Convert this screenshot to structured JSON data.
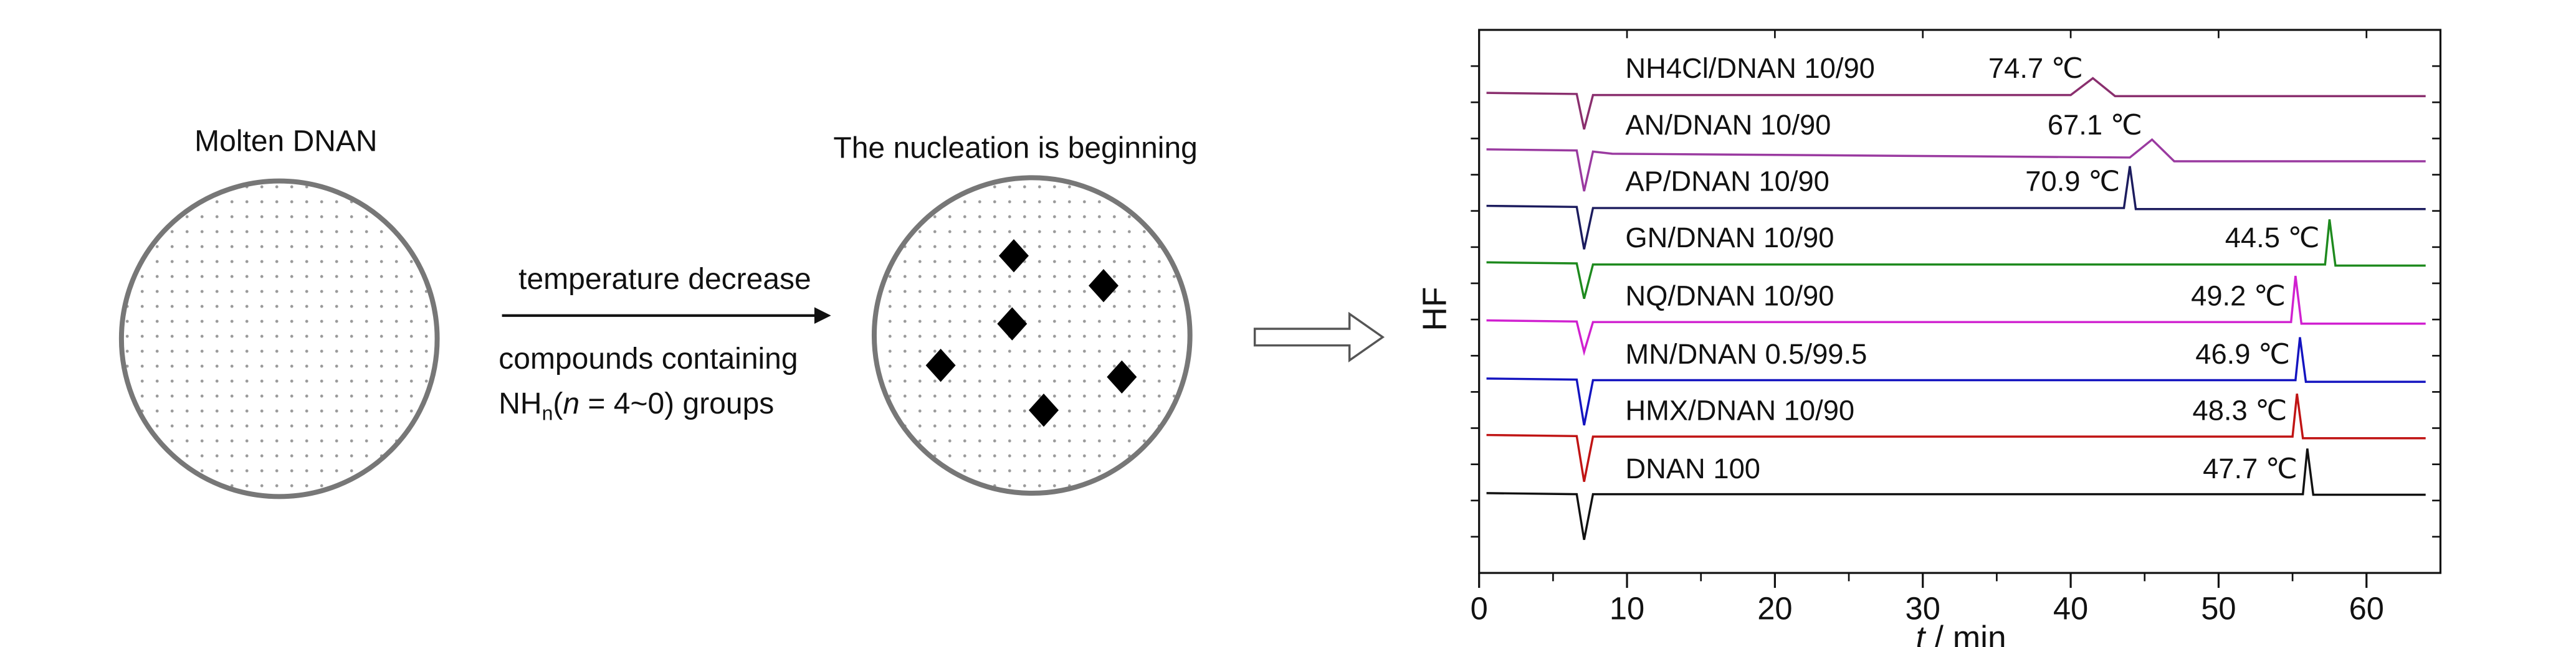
{
  "diagram": {
    "left_title": "Molten DNAN",
    "right_title": "The nucleation is beginning",
    "arrow_top": "temperature decrease",
    "arrow_bottom_1": "compounds containing",
    "arrow_bottom_2": {
      "base": "NH",
      "sub": "n",
      "open": "(",
      "var": "n",
      "rest": " = 4~0) groups"
    }
  },
  "chart_data": {
    "type": "line",
    "xlabel_var": "t",
    "xlabel_unit": " / min",
    "ylabel": "HF",
    "xlim": [
      0,
      65
    ],
    "xticks": [
      0,
      10,
      20,
      30,
      40,
      50,
      60
    ],
    "ylim": [
      0,
      10
    ],
    "series": [
      {
        "name": "NH4Cl/DNAN 10/90",
        "peak_label": "74.7 ℃",
        "color": "#8a2f6e",
        "x": [
          0.5,
          6.6,
          7.1,
          7.7,
          9,
          40,
          41.5,
          43,
          64
        ],
        "values": [
          8.84,
          8.82,
          8.17,
          8.8,
          8.8,
          8.8,
          9.11,
          8.78,
          8.78
        ]
      },
      {
        "name": "AN/DNAN 10/90",
        "peak_label": "67.1 ℃",
        "color": "#9a3aa0",
        "x": [
          0.5,
          6.6,
          7.1,
          7.7,
          9,
          44,
          45.5,
          47,
          64
        ],
        "values": [
          7.8,
          7.78,
          7.03,
          7.76,
          7.72,
          7.65,
          7.98,
          7.58,
          7.58
        ]
      },
      {
        "name": "AP/DNAN 10/90",
        "peak_label": "70.9 ℃",
        "color": "#1c1c5e",
        "x": [
          0.5,
          6.6,
          7.1,
          7.7,
          9,
          43.6,
          44,
          44.4,
          64
        ],
        "values": [
          6.76,
          6.74,
          5.96,
          6.72,
          6.72,
          6.72,
          7.49,
          6.7,
          6.7
        ]
      },
      {
        "name": "GN/DNAN 10/90",
        "peak_label": "44.5 ℃",
        "color": "#1e8a1e",
        "x": [
          0.5,
          6.6,
          7.1,
          7.7,
          9,
          57.2,
          57.5,
          57.9,
          64
        ],
        "values": [
          5.72,
          5.7,
          5.05,
          5.68,
          5.68,
          5.68,
          6.51,
          5.66,
          5.66
        ]
      },
      {
        "name": "NQ/DNAN 10/90",
        "peak_label": "49.2 ℃",
        "color": "#d020d0",
        "x": [
          0.5,
          6.6,
          7.1,
          7.7,
          9,
          54.9,
          55.2,
          55.6,
          64
        ],
        "values": [
          4.65,
          4.63,
          4.07,
          4.62,
          4.62,
          4.62,
          5.47,
          4.59,
          4.59
        ]
      },
      {
        "name": "MN/DNAN 0.5/99.5",
        "peak_label": "46.9 ℃",
        "color": "#1414c0",
        "x": [
          0.5,
          6.6,
          7.1,
          7.7,
          9,
          55.2,
          55.5,
          55.9,
          64
        ],
        "values": [
          3.58,
          3.56,
          2.72,
          3.55,
          3.55,
          3.55,
          4.34,
          3.52,
          3.52
        ]
      },
      {
        "name": "HMX/DNAN 10/90",
        "peak_label": "48.3 ℃",
        "color": "#c01414",
        "x": [
          0.5,
          6.6,
          7.1,
          7.7,
          9,
          55,
          55.3,
          55.7,
          64
        ],
        "values": [
          2.54,
          2.52,
          1.68,
          2.51,
          2.51,
          2.51,
          3.3,
          2.48,
          2.48
        ]
      },
      {
        "name": "DNAN 100",
        "peak_label": "47.7 ℃",
        "color": "#111111",
        "x": [
          0.5,
          6.6,
          7.1,
          7.7,
          9,
          55.7,
          56,
          56.4,
          64
        ],
        "values": [
          1.47,
          1.45,
          0.61,
          1.45,
          1.45,
          1.45,
          2.29,
          1.44,
          1.44
        ]
      }
    ]
  }
}
